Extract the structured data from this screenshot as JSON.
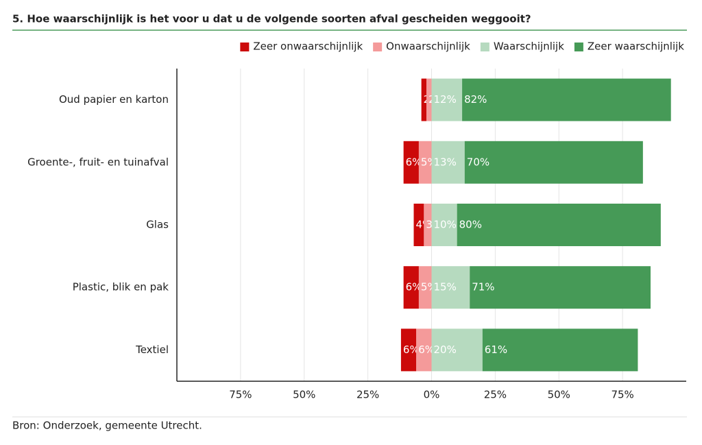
{
  "chart_data": {
    "type": "bar",
    "orientation": "horizontal",
    "diverging": true,
    "title": "5. Hoe waarschijnlijk is het voor u dat u de volgende soorten afval gescheiden weggooit?",
    "source": "Bron: Onderzoek, gemeente Utrecht.",
    "categories": [
      "Oud papier en karton",
      "Groente-, fruit- en tuinafval",
      "Glas",
      "Plastic, blik en pak",
      "Textiel"
    ],
    "series": [
      {
        "name": "Zeer onwaarschijnlijk",
        "color": "#cc0a0a",
        "values": [
          2,
          6,
          4,
          6,
          6
        ],
        "value_labels": [
          "2%",
          "6%",
          "4%",
          "6%",
          "6%"
        ]
      },
      {
        "name": "Onwaarschijnlijk",
        "color": "#f49a9a",
        "values": [
          2,
          5,
          3,
          5,
          6
        ],
        "value_labels": [
          "2%",
          "5%",
          "3%",
          "5%",
          "6%"
        ]
      },
      {
        "name": "Waarschijnlijk",
        "color": "#b6dabf",
        "values": [
          12,
          13,
          10,
          15,
          20
        ],
        "value_labels": [
          "12%",
          "13%",
          "10%",
          "15%",
          "20%"
        ]
      },
      {
        "name": "Zeer waarschijnlijk",
        "color": "#469a57",
        "values": [
          82,
          70,
          80,
          71,
          61
        ],
        "value_labels": [
          "82%",
          "70%",
          "80%",
          "71%",
          "61%"
        ]
      }
    ],
    "xlim": [
      -100,
      100
    ],
    "xticks": [
      {
        "value": -75,
        "label": "75%"
      },
      {
        "value": -50,
        "label": "50%"
      },
      {
        "value": -25,
        "label": "25%"
      },
      {
        "value": 0,
        "label": "0%"
      },
      {
        "value": 25,
        "label": "25%"
      },
      {
        "value": 50,
        "label": "50%"
      },
      {
        "value": 75,
        "label": "75%"
      }
    ],
    "grid": true,
    "legend": "top-right"
  }
}
